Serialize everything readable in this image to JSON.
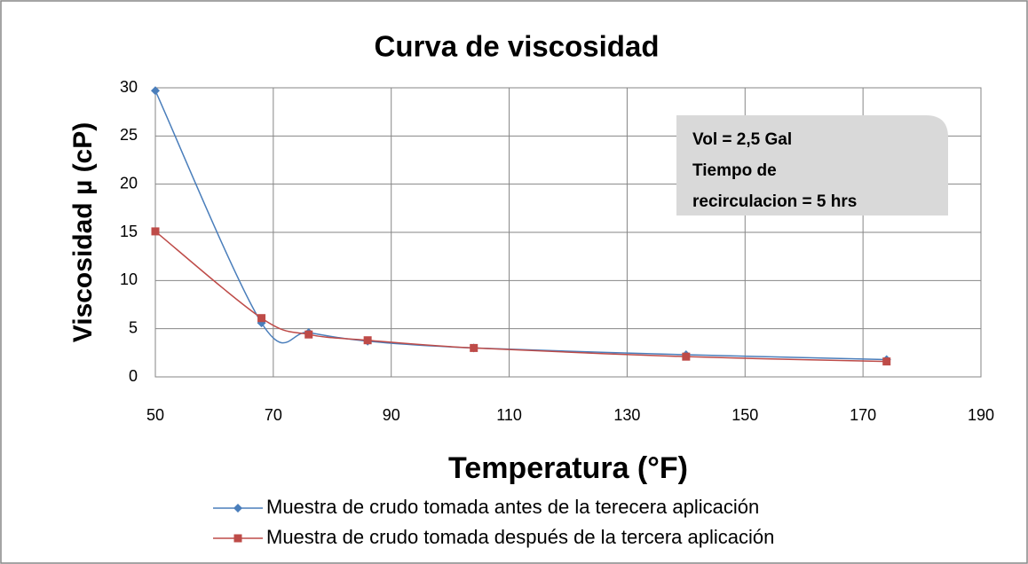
{
  "chart_data": {
    "type": "line",
    "title": "Curva de viscosidad",
    "x_label": "Temperatura (°F)",
    "y_label": "Viscosidad µ (cP)",
    "annotation": [
      "Vol = 2,5 Gal",
      "Tiempo de",
      "recirculacion = 5 hrs"
    ],
    "xlim": [
      50,
      190
    ],
    "xticks": [
      50,
      70,
      90,
      110,
      130,
      150,
      170,
      190
    ],
    "ylim": [
      0,
      30
    ],
    "yticks": [
      0,
      5,
      10,
      15,
      20,
      25,
      30
    ],
    "grid": true,
    "smooth": true,
    "legend": "bottom",
    "series": [
      {
        "name": "Muestra de crudo tomada antes de la terecera aplicación",
        "color": "#4a7ebb",
        "marker": "diamond",
        "x": [
          50,
          68,
          76,
          86,
          104,
          140,
          174
        ],
        "values": [
          29.7,
          5.6,
          4.6,
          3.7,
          3.0,
          2.3,
          1.8
        ]
      },
      {
        "name": "Muestra de crudo tomada después de la tercera aplicación",
        "color": "#be4b48",
        "marker": "square",
        "x": [
          50,
          68,
          76,
          86,
          104,
          140,
          174
        ],
        "values": [
          15.1,
          6.1,
          4.4,
          3.8,
          3.0,
          2.1,
          1.6
        ]
      }
    ]
  }
}
